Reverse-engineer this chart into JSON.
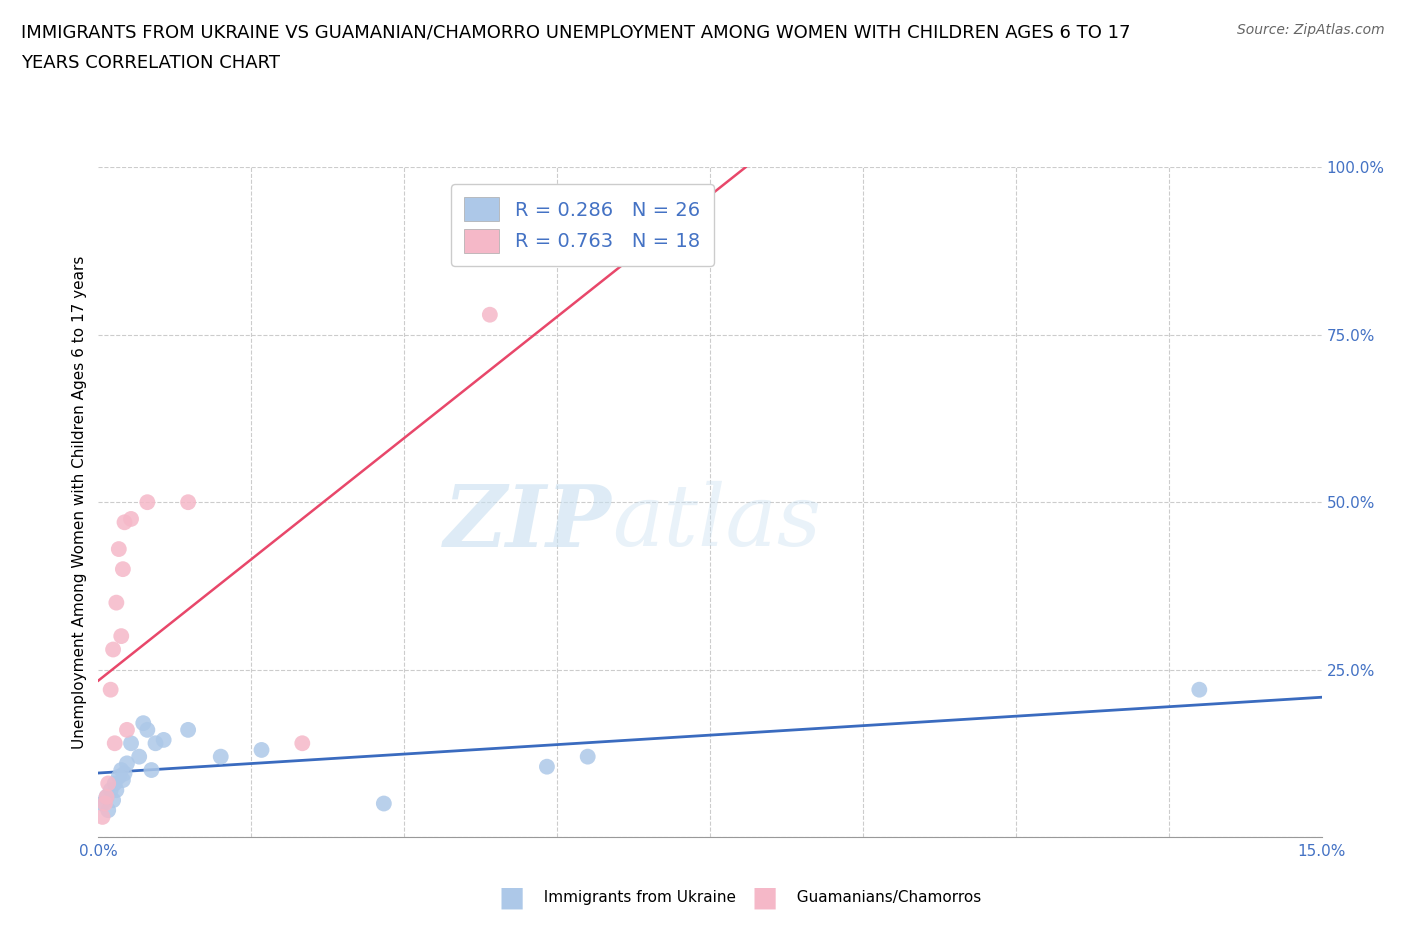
{
  "title_line1": "IMMIGRANTS FROM UKRAINE VS GUAMANIAN/CHAMORRO UNEMPLOYMENT AMONG WOMEN WITH CHILDREN AGES 6 TO 17",
  "title_line2": "YEARS CORRELATION CHART",
  "source": "Source: ZipAtlas.com",
  "yaxis_label": "Unemployment Among Women with Children Ages 6 to 17 years",
  "legend_ukraine": "Immigrants from Ukraine",
  "legend_guam": "Guamanians/Chamorros",
  "ukraine_R": 0.286,
  "ukraine_N": 26,
  "guam_R": 0.763,
  "guam_N": 18,
  "ukraine_color": "#adc8e8",
  "guam_color": "#f5b8c8",
  "ukraine_line_color": "#3a6bbf",
  "guam_line_color": "#e8476a",
  "watermark_zip": "ZIP",
  "watermark_atlas": "atlas",
  "ukraine_x": [
    0.05,
    0.1,
    0.12,
    0.15,
    0.18,
    0.2,
    0.22,
    0.25,
    0.28,
    0.3,
    0.32,
    0.35,
    0.4,
    0.5,
    0.55,
    0.6,
    0.65,
    0.7,
    0.8,
    1.1,
    1.5,
    2.0,
    3.5,
    5.5,
    6.0,
    13.5
  ],
  "ukraine_y": [
    5.0,
    6.0,
    4.0,
    7.0,
    5.5,
    8.0,
    7.0,
    9.0,
    10.0,
    8.5,
    9.5,
    11.0,
    14.0,
    12.0,
    17.0,
    16.0,
    10.0,
    14.0,
    14.5,
    16.0,
    12.0,
    13.0,
    5.0,
    10.5,
    12.0,
    22.0
  ],
  "guam_x": [
    0.05,
    0.08,
    0.1,
    0.12,
    0.15,
    0.18,
    0.2,
    0.22,
    0.25,
    0.28,
    0.3,
    0.32,
    0.35,
    0.4,
    0.6,
    1.1,
    2.5,
    4.8
  ],
  "guam_y": [
    3.0,
    5.0,
    6.0,
    8.0,
    22.0,
    28.0,
    14.0,
    35.0,
    43.0,
    30.0,
    40.0,
    47.0,
    16.0,
    47.5,
    50.0,
    50.0,
    14.0,
    78.0
  ],
  "xlim": [
    0.0,
    15.0
  ],
  "ylim": [
    0.0,
    100.0
  ],
  "yticks": [
    0,
    25,
    50,
    75,
    100
  ],
  "xticks_minor": [
    1.875,
    3.75,
    5.625,
    7.5,
    9.375,
    11.25,
    13.125
  ],
  "background_color": "#ffffff",
  "grid_color": "#cccccc",
  "tick_color": "#4472c4",
  "title_fontsize": 13,
  "source_fontsize": 10,
  "legend_fontsize": 14,
  "axis_label_fontsize": 11,
  "tick_fontsize": 11
}
